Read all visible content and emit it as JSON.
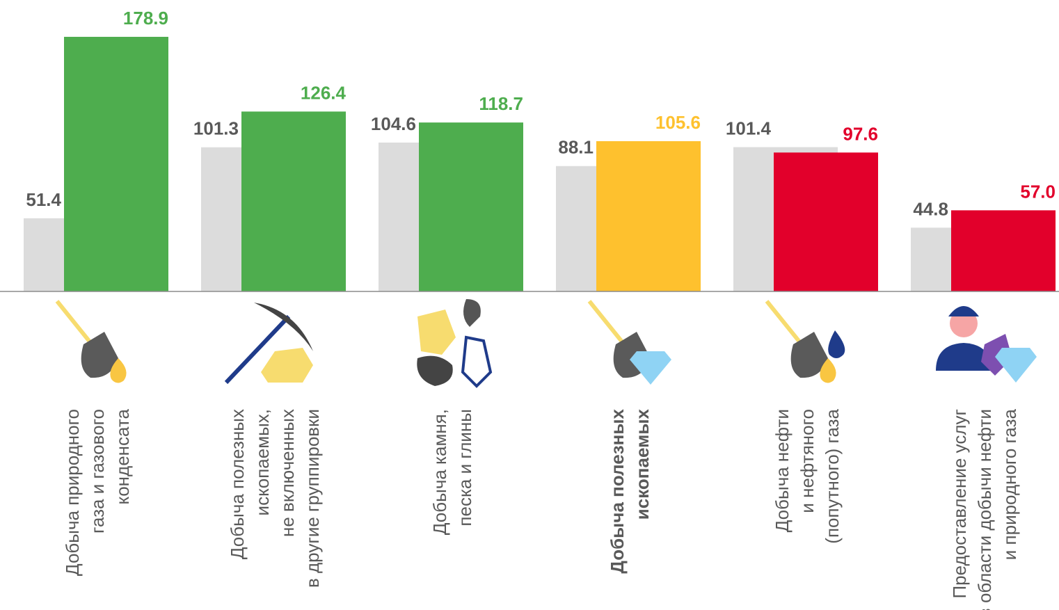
{
  "chart_data": {
    "type": "bar",
    "categories": [
      [
        "Добыча  природного",
        "газа и газового",
        "конденсата"
      ],
      [
        "Добыча полезных",
        "ископаемых,",
        "не включенных",
        "в другие группировки"
      ],
      [
        "Добыча камня,",
        "песка и глины"
      ],
      [
        "Добыча полезных",
        "ископаемых"
      ],
      [
        "Добыча нефти",
        "и нефтяного",
        "(попутного) газа"
      ],
      [
        "Предоставление услуг",
        "в области добычи нефти",
        "и природного газа"
      ]
    ],
    "category_bold": [
      false,
      false,
      false,
      true,
      false,
      false
    ],
    "series": [
      {
        "colors": [
          "#dcdcdc",
          "#dcdcdc",
          "#dcdcdc",
          "#dcdcdc",
          "#dcdcdc",
          "#dcdcdc"
        ],
        "label_color": "#595959",
        "values": [
          51.4,
          101.3,
          104.6,
          88.1,
          101.4,
          44.8
        ],
        "value_labels": [
          "51.4",
          "101.3",
          "104.6",
          "88.1",
          "101.4",
          "44.8"
        ]
      },
      {
        "colors": [
          "#4ead4e",
          "#4ead4e",
          "#4ead4e",
          "#fec12e",
          "#e2002b",
          "#e2002b"
        ],
        "values": [
          178.9,
          126.4,
          118.7,
          105.6,
          97.6,
          57.0
        ],
        "value_labels": [
          "178.9",
          "126.4",
          "118.7",
          "105.6",
          "97.6",
          "57.0"
        ]
      }
    ],
    "ylim": [
      0,
      180
    ]
  }
}
